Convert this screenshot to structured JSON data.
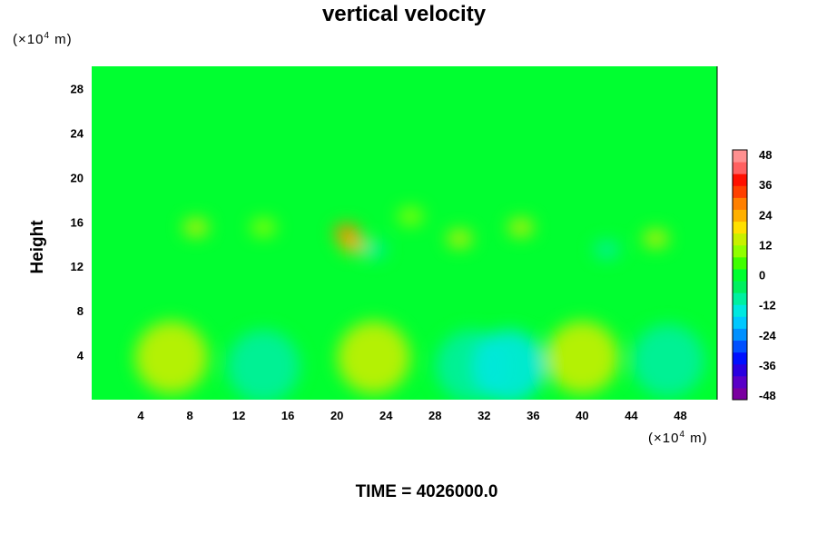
{
  "chart_data": {
    "type": "heatmap",
    "title": "vertical velocity",
    "ylabel": "Height",
    "y_unit": {
      "prefix": "(×10",
      "exp": "4",
      "suffix": " m)"
    },
    "x_unit": {
      "prefix": "(×10",
      "exp": "4",
      "suffix": " m)"
    },
    "xlim": [
      0,
      51
    ],
    "ylim": [
      0,
      30
    ],
    "x_ticks": [
      4,
      8,
      12,
      16,
      20,
      24,
      28,
      32,
      36,
      40,
      44,
      48
    ],
    "y_ticks": [
      4,
      8,
      12,
      16,
      20,
      24,
      28
    ],
    "colorbar": {
      "range": [
        -48,
        48
      ],
      "tick_labels": [
        "48",
        "36",
        "24",
        "12",
        "0",
        "-12",
        "-24",
        "-36",
        "-48"
      ],
      "colors": [
        "#7a00a0",
        "#5a00c8",
        "#2a00e0",
        "#0010ff",
        "#0050ff",
        "#0090ff",
        "#00c8ff",
        "#00e8e0",
        "#00f0a0",
        "#00f060",
        "#00ff30",
        "#40ff00",
        "#90ff00",
        "#c8f000",
        "#ffe000",
        "#ffb000",
        "#ff8000",
        "#ff4000",
        "#ff1000",
        "#ff6060",
        "#ff9090"
      ]
    },
    "background_value": 2,
    "features": [
      {
        "x": 6.5,
        "y": 3.8,
        "value": 12
      },
      {
        "x": 23,
        "y": 3.8,
        "value": 12
      },
      {
        "x": 40,
        "y": 3.8,
        "value": 12
      },
      {
        "x": 14,
        "y": 3,
        "value": -10
      },
      {
        "x": 31,
        "y": 3,
        "value": -10
      },
      {
        "x": 34,
        "y": 3,
        "value": -12
      },
      {
        "x": 47,
        "y": 3.5,
        "value": -8
      },
      {
        "x": 20.8,
        "y": 15,
        "value": 28
      },
      {
        "x": 21.3,
        "y": 14,
        "value": 22
      },
      {
        "x": 8.5,
        "y": 15.5,
        "value": 12
      },
      {
        "x": 30,
        "y": 14.5,
        "value": 14
      },
      {
        "x": 35,
        "y": 15.5,
        "value": 14
      },
      {
        "x": 46,
        "y": 14.5,
        "value": 12
      },
      {
        "x": 23,
        "y": 13.5,
        "value": -10
      },
      {
        "x": 42,
        "y": 13.5,
        "value": -8
      },
      {
        "x": 14,
        "y": 15.5,
        "value": 10
      },
      {
        "x": 26,
        "y": 16.5,
        "value": 10
      }
    ]
  },
  "time_label": "TIME = 4026000.0"
}
